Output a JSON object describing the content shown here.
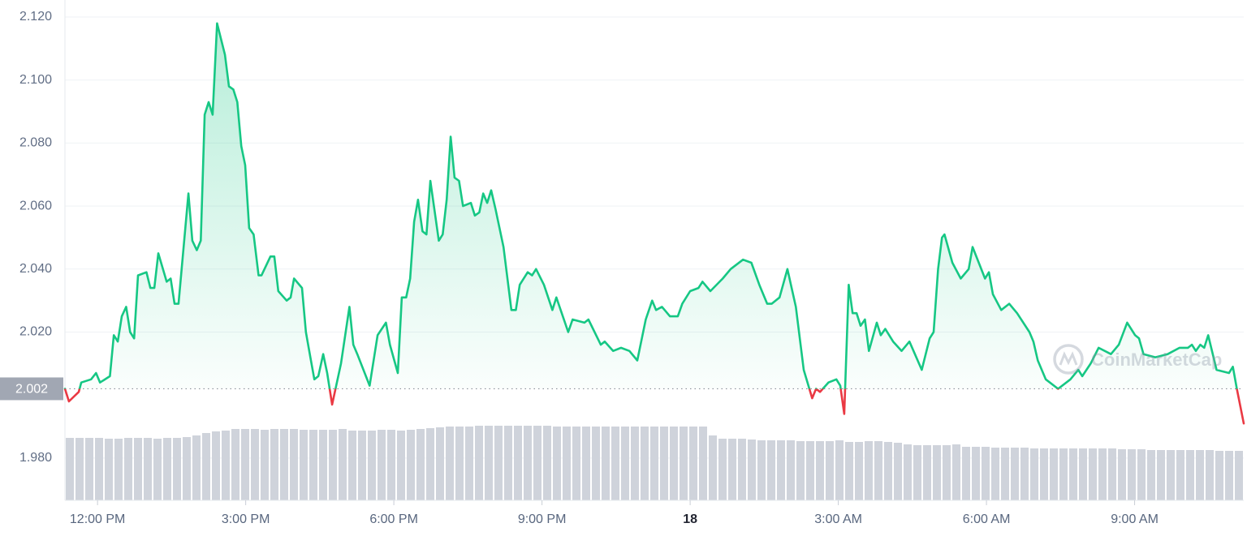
{
  "chart_data": {
    "type": "line",
    "series": [
      {
        "color": "#16c784",
        "below_color": "#ea3943",
        "x": [
          -0.66,
          -0.58,
          -0.38,
          -0.33,
          -0.13,
          -0.03,
          0.05,
          0.25,
          0.33,
          0.41,
          0.49,
          0.58,
          0.66,
          0.74,
          0.82,
          0.99,
          1.07,
          1.15,
          1.23,
          1.4,
          1.48,
          1.56,
          1.64,
          1.84,
          1.92,
          2.01,
          2.09,
          2.17,
          2.25,
          2.33,
          2.42,
          2.58,
          2.66,
          2.75,
          2.83,
          2.91,
          2.99,
          3.07,
          3.16,
          3.26,
          3.32,
          3.5,
          3.58,
          3.66,
          3.83,
          3.91,
          3.98,
          4.14,
          4.22,
          4.31,
          4.39,
          4.47,
          4.57,
          4.65,
          4.75,
          4.93,
          5.1,
          5.18,
          5.26,
          5.51,
          5.67,
          5.84,
          5.92,
          6.08,
          6.16,
          6.25,
          6.33,
          6.41,
          6.49,
          6.58,
          6.66,
          6.74,
          6.91,
          6.99,
          7.07,
          7.15,
          7.23,
          7.32,
          7.4,
          7.56,
          7.64,
          7.73,
          7.81,
          7.89,
          7.97,
          8.06,
          8.22,
          8.38,
          8.47,
          8.55,
          8.71,
          8.8,
          8.88,
          9.04,
          9.21,
          9.29,
          9.53,
          9.62,
          9.86,
          9.94,
          10.19,
          10.27,
          10.44,
          10.6,
          10.77,
          10.93,
          11.1,
          11.23,
          11.31,
          11.43,
          11.59,
          11.75,
          11.84,
          12.0,
          12.17,
          12.25,
          12.41,
          12.66,
          12.82,
          13.07,
          13.24,
          13.4,
          13.56,
          13.65,
          13.81,
          13.97,
          14.14,
          14.3,
          14.47,
          14.55,
          14.63,
          14.8,
          14.96,
          15.04,
          15.12,
          15.21,
          15.29,
          15.37,
          15.45,
          15.54,
          15.62,
          15.78,
          15.86,
          15.95,
          16.11,
          16.28,
          16.44,
          16.69,
          16.85,
          16.93,
          17.02,
          17.1,
          17.15,
          17.31,
          17.48,
          17.64,
          17.72,
          17.97,
          18.05,
          18.13,
          18.3,
          18.46,
          18.62,
          18.87,
          18.95,
          19.04,
          19.2,
          19.45,
          19.7,
          19.86,
          19.94,
          20.11,
          20.27,
          20.52,
          20.68,
          20.85,
          21.01,
          21.09,
          21.18,
          21.42,
          21.67,
          21.91,
          22.08,
          22.16,
          22.24,
          22.33,
          22.41,
          22.49,
          22.66,
          22.91,
          22.99,
          23.07,
          23.21
        ],
        "values": [
          2.002,
          1.998,
          2.001,
          2.004,
          2.005,
          2.007,
          2.004,
          2.006,
          2.019,
          2.017,
          2.025,
          2.028,
          2.02,
          2.018,
          2.038,
          2.039,
          2.034,
          2.034,
          2.045,
          2.036,
          2.037,
          2.029,
          2.029,
          2.064,
          2.049,
          2.046,
          2.049,
          2.089,
          2.093,
          2.089,
          2.118,
          2.108,
          2.098,
          2.097,
          2.093,
          2.079,
          2.073,
          2.053,
          2.051,
          2.038,
          2.038,
          2.044,
          2.044,
          2.033,
          2.03,
          2.031,
          2.037,
          2.034,
          2.02,
          2.012,
          2.005,
          2.006,
          2.013,
          2.007,
          1.997,
          2.01,
          2.028,
          2.016,
          2.013,
          2.003,
          2.019,
          2.023,
          2.016,
          2.007,
          2.031,
          2.031,
          2.037,
          2.055,
          2.062,
          2.052,
          2.051,
          2.068,
          2.049,
          2.051,
          2.062,
          2.082,
          2.069,
          2.068,
          2.06,
          2.061,
          2.057,
          2.058,
          2.064,
          2.061,
          2.065,
          2.059,
          2.047,
          2.027,
          2.027,
          2.035,
          2.039,
          2.038,
          2.04,
          2.035,
          2.027,
          2.031,
          2.02,
          2.024,
          2.023,
          2.024,
          2.016,
          2.017,
          2.014,
          2.015,
          2.014,
          2.011,
          2.024,
          2.03,
          2.027,
          2.028,
          2.025,
          2.025,
          2.029,
          2.033,
          2.034,
          2.036,
          2.033,
          2.037,
          2.04,
          2.043,
          2.042,
          2.035,
          2.029,
          2.029,
          2.031,
          2.04,
          2.028,
          2.008,
          1.999,
          2.002,
          2.001,
          2.004,
          2.005,
          2.003,
          1.994,
          2.035,
          2.026,
          2.026,
          2.022,
          2.024,
          2.014,
          2.023,
          2.019,
          2.021,
          2.017,
          2.014,
          2.017,
          2.008,
          2.018,
          2.02,
          2.04,
          2.05,
          2.051,
          2.042,
          2.037,
          2.04,
          2.047,
          2.037,
          2.039,
          2.032,
          2.027,
          2.029,
          2.026,
          2.02,
          2.017,
          2.011,
          2.005,
          2.002,
          2.005,
          2.008,
          2.006,
          2.01,
          2.015,
          2.013,
          2.016,
          2.023,
          2.019,
          2.018,
          2.013,
          2.012,
          2.013,
          2.015,
          2.015,
          2.016,
          2.014,
          2.016,
          2.015,
          2.019,
          2.008,
          2.007,
          2.009,
          2.002,
          1.991
        ]
      }
    ],
    "reference": {
      "value": 2.002,
      "label": "2.002"
    },
    "volume": {
      "color": "#cfd3db",
      "values": [
        77,
        77,
        77,
        77,
        76,
        76,
        77,
        77,
        77,
        76,
        77,
        77,
        78,
        80,
        83,
        85,
        86,
        88,
        88,
        88,
        87,
        88,
        88,
        88,
        87,
        87,
        87,
        87,
        88,
        86,
        86,
        86,
        87,
        87,
        86,
        87,
        88,
        89,
        90,
        91,
        91,
        91,
        92,
        92,
        92,
        92,
        92,
        92,
        92,
        92,
        91,
        91,
        91,
        91,
        91,
        91,
        91,
        91,
        91,
        91,
        91,
        91,
        91,
        91,
        91,
        91,
        80,
        76,
        76,
        76,
        75,
        74,
        74,
        74,
        74,
        73,
        73,
        73,
        73,
        74,
        72,
        72,
        73,
        73,
        72,
        71,
        69,
        68,
        68,
        68,
        68,
        69,
        66,
        66,
        66,
        65,
        65,
        65,
        65,
        64,
        64,
        64,
        64,
        64,
        64,
        64,
        64,
        64,
        63,
        63,
        63,
        62,
        62,
        62,
        62,
        62,
        62,
        62,
        61,
        61,
        61
      ]
    },
    "xlim": [
      -0.66,
      23.21
    ],
    "ylim": [
      1.9666,
      2.1254
    ],
    "xticks": [
      {
        "value": 0,
        "label": "12:00 PM"
      },
      {
        "value": 3,
        "label": "3:00 PM"
      },
      {
        "value": 6,
        "label": "6:00 PM"
      },
      {
        "value": 9,
        "label": "9:00 PM"
      },
      {
        "value": 12,
        "label": "18"
      },
      {
        "value": 15,
        "label": "3:00 AM"
      },
      {
        "value": 18,
        "label": "6:00 AM"
      },
      {
        "value": 21,
        "label": "9:00 AM"
      }
    ],
    "yticks": [
      {
        "value": 2.12,
        "label": "2.120"
      },
      {
        "value": 2.1,
        "label": "2.100"
      },
      {
        "value": 2.08,
        "label": "2.080"
      },
      {
        "value": 2.06,
        "label": "2.060"
      },
      {
        "value": 2.04,
        "label": "2.040"
      },
      {
        "value": 2.02,
        "label": "2.020"
      },
      {
        "value": 1.98,
        "label": "1.980"
      }
    ],
    "grid": true,
    "watermark": "CoinMarketCap"
  }
}
